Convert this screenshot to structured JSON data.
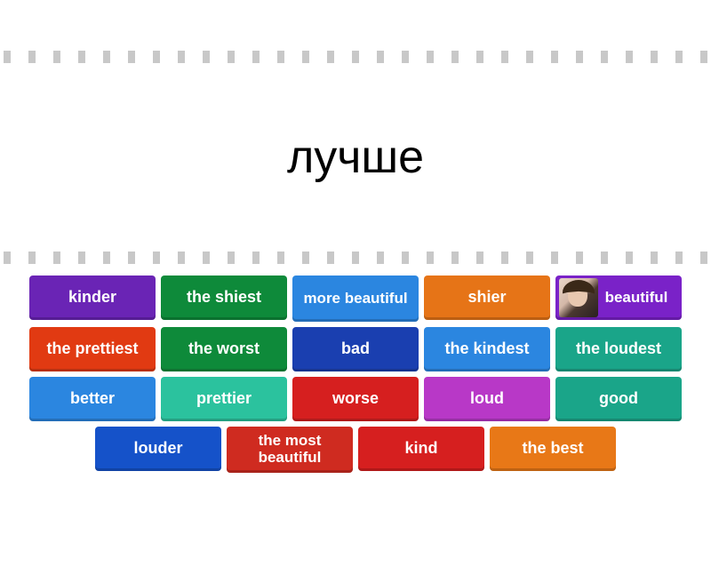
{
  "prompt": "лучше",
  "dot_count": 29,
  "colors": {
    "purple": "#6a24b5",
    "green_dark": "#0e8a3a",
    "blue_light": "#2b86e0",
    "orange": "#e67417",
    "violet": "#7a22c8",
    "red_orange": "#e13a12",
    "blue_dark": "#1a3fb0",
    "teal": "#1aa589",
    "teal_light": "#2bc29e",
    "red": "#d61f1f",
    "magenta": "#b838c7",
    "blue_mid": "#1552c9",
    "red_deep": "#cf2b20",
    "orange_alt": "#e87817"
  },
  "rows": [
    [
      {
        "label": "kinder",
        "color": "purple"
      },
      {
        "label": "the shiest",
        "color": "green_dark"
      },
      {
        "label": "more beautiful",
        "color": "blue_light",
        "multi": true
      },
      {
        "label": "shier",
        "color": "orange"
      },
      {
        "label": "beautiful",
        "color": "violet",
        "avatar": true
      }
    ],
    [
      {
        "label": "the prettiest",
        "color": "red_orange"
      },
      {
        "label": "the worst",
        "color": "green_dark"
      },
      {
        "label": "bad",
        "color": "blue_dark"
      },
      {
        "label": "the kindest",
        "color": "blue_light"
      },
      {
        "label": "the loudest",
        "color": "teal"
      }
    ],
    [
      {
        "label": "better",
        "color": "blue_light"
      },
      {
        "label": "prettier",
        "color": "teal_light"
      },
      {
        "label": "worse",
        "color": "red"
      },
      {
        "label": "loud",
        "color": "magenta"
      },
      {
        "label": "good",
        "color": "teal"
      }
    ],
    [
      {
        "label": "louder",
        "color": "blue_mid"
      },
      {
        "label": "the most beautiful",
        "color": "red_deep",
        "multi": true
      },
      {
        "label": "kind",
        "color": "red"
      },
      {
        "label": "the best",
        "color": "orange_alt"
      }
    ]
  ]
}
